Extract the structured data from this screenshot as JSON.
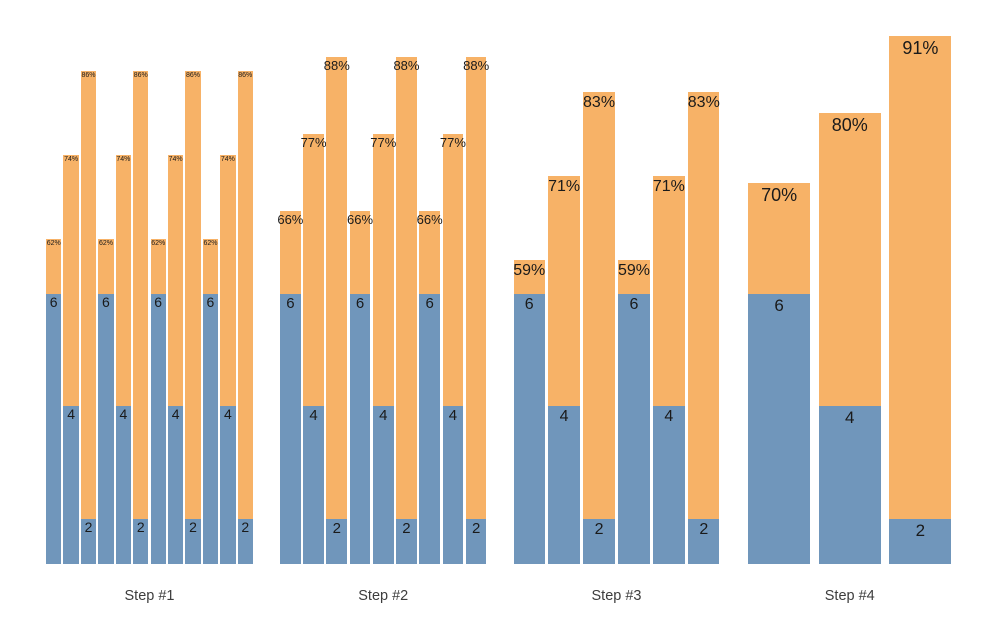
{
  "chart_data": {
    "type": "bar",
    "variant": "grouped stacked bars: blue count segment at bottom, orange segment above, percent label at bar top",
    "title": "",
    "xlabel": "",
    "ylabel": "",
    "grid": false,
    "legend": null,
    "background": "#ffffff",
    "series_colors": {
      "count_segment_blue": "#7096bb",
      "percent_segment_orange": "#f7b267"
    },
    "text_colors": {
      "bar_labels": "#1a1a1a",
      "step_labels": "#3d3d3d"
    },
    "x_tick_labels": [
      "Step #1",
      "Step #2",
      "Step #3",
      "Step #4"
    ],
    "groups": [
      {
        "label": "Step #1",
        "bars": [
          {
            "count": 6,
            "count_label": "6",
            "percent": 62,
            "percent_label": "62%"
          },
          {
            "count": 4,
            "count_label": "4",
            "percent": 74,
            "percent_label": "74%"
          },
          {
            "count": 2,
            "count_label": "2",
            "percent": 86,
            "percent_label": "86%"
          },
          {
            "count": 6,
            "count_label": "6",
            "percent": 62,
            "percent_label": "62%"
          },
          {
            "count": 4,
            "count_label": "4",
            "percent": 74,
            "percent_label": "74%"
          },
          {
            "count": 2,
            "count_label": "2",
            "percent": 86,
            "percent_label": "86%"
          },
          {
            "count": 6,
            "count_label": "6",
            "percent": 62,
            "percent_label": "62%"
          },
          {
            "count": 4,
            "count_label": "4",
            "percent": 74,
            "percent_label": "74%"
          },
          {
            "count": 2,
            "count_label": "2",
            "percent": 86,
            "percent_label": "86%"
          },
          {
            "count": 6,
            "count_label": "6",
            "percent": 62,
            "percent_label": "62%"
          },
          {
            "count": 4,
            "count_label": "4",
            "percent": 74,
            "percent_label": "74%"
          },
          {
            "count": 2,
            "count_label": "2",
            "percent": 86,
            "percent_label": "86%"
          }
        ]
      },
      {
        "label": "Step #2",
        "bars": [
          {
            "count": 6,
            "count_label": "6",
            "percent": 66,
            "percent_label": "66%"
          },
          {
            "count": 4,
            "count_label": "4",
            "percent": 77,
            "percent_label": "77%"
          },
          {
            "count": 2,
            "count_label": "2",
            "percent": 88,
            "percent_label": "88%"
          },
          {
            "count": 6,
            "count_label": "6",
            "percent": 66,
            "percent_label": "66%"
          },
          {
            "count": 4,
            "count_label": "4",
            "percent": 77,
            "percent_label": "77%"
          },
          {
            "count": 2,
            "count_label": "2",
            "percent": 88,
            "percent_label": "88%"
          },
          {
            "count": 6,
            "count_label": "6",
            "percent": 66,
            "percent_label": "66%"
          },
          {
            "count": 4,
            "count_label": "4",
            "percent": 77,
            "percent_label": "77%"
          },
          {
            "count": 2,
            "count_label": "2",
            "percent": 88,
            "percent_label": "88%"
          }
        ]
      },
      {
        "label": "Step #3",
        "bars": [
          {
            "count": 6,
            "count_label": "6",
            "percent": 59,
            "percent_label": "59%"
          },
          {
            "count": 4,
            "count_label": "4",
            "percent": 71,
            "percent_label": "71%"
          },
          {
            "count": 2,
            "count_label": "2",
            "percent": 83,
            "percent_label": "83%"
          },
          {
            "count": 6,
            "count_label": "6",
            "percent": 59,
            "percent_label": "59%"
          },
          {
            "count": 4,
            "count_label": "4",
            "percent": 71,
            "percent_label": "71%"
          },
          {
            "count": 2,
            "count_label": "2",
            "percent": 83,
            "percent_label": "83%"
          }
        ]
      },
      {
        "label": "Step #4",
        "bars": [
          {
            "count": 6,
            "count_label": "6",
            "percent": 70,
            "percent_label": "70%"
          },
          {
            "count": 4,
            "count_label": "4",
            "percent": 80,
            "percent_label": "80%"
          },
          {
            "count": 2,
            "count_label": "2",
            "percent": 91,
            "percent_label": "91%"
          }
        ]
      }
    ]
  }
}
